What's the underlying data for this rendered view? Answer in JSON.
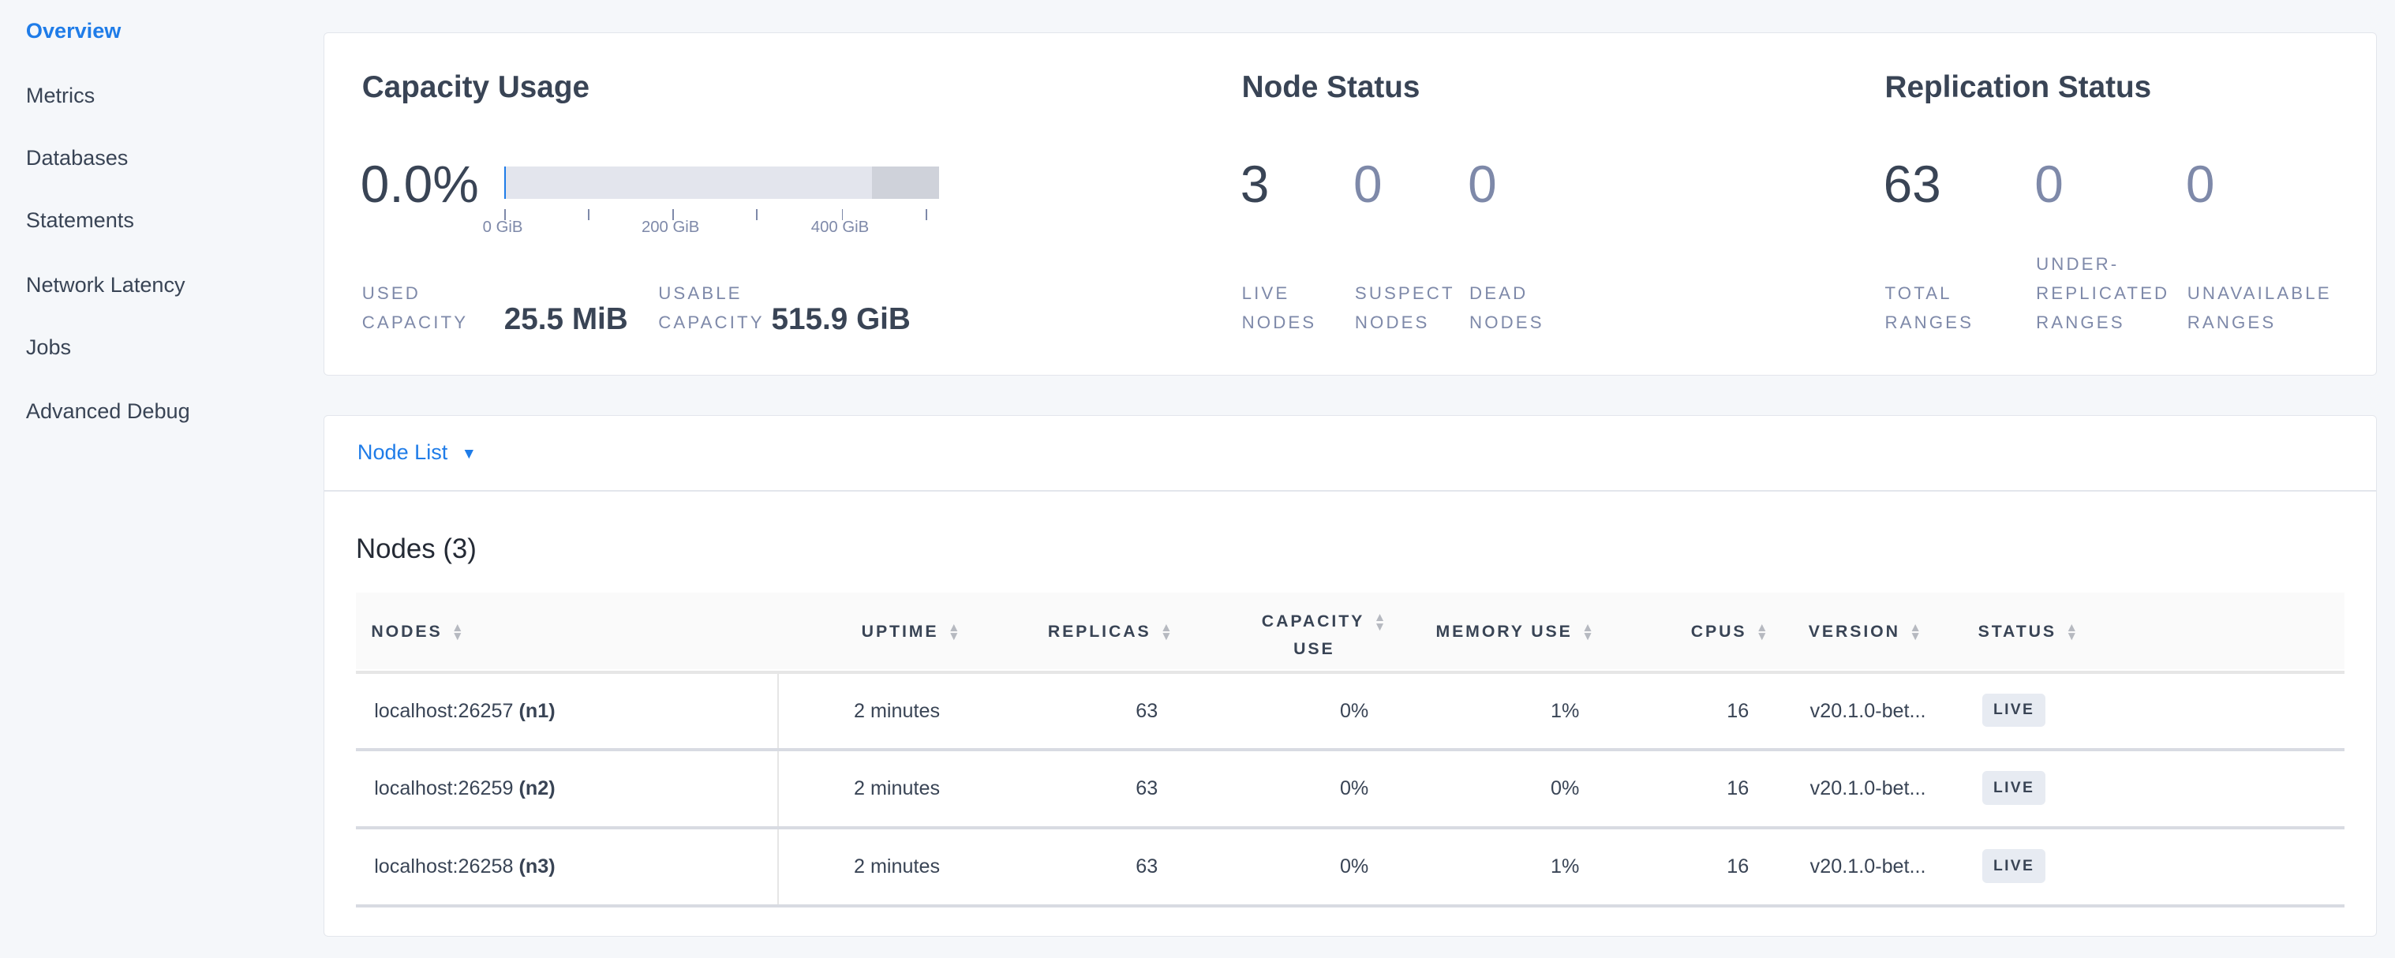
{
  "sidebar": {
    "items": [
      {
        "label": "Overview",
        "active": true
      },
      {
        "label": "Metrics"
      },
      {
        "label": "Databases"
      },
      {
        "label": "Statements"
      },
      {
        "label": "Network Latency"
      },
      {
        "label": "Jobs"
      },
      {
        "label": "Advanced Debug"
      }
    ]
  },
  "capacity": {
    "title": "Capacity Usage",
    "percent": "0.0%",
    "used_fraction": 5e-05,
    "ticks": [
      "0 GiB",
      "200 GiB",
      "400 GiB"
    ],
    "used_label_1": "USED",
    "used_label_2": "CAPACITY",
    "used_value": "25.5 MiB",
    "usable_label_1": "USABLE",
    "usable_label_2": "CAPACITY",
    "usable_value": "515.9 GiB"
  },
  "node_status": {
    "title": "Node Status",
    "live": "3",
    "suspect": "0",
    "dead": "0",
    "live_l1": "LIVE",
    "live_l2": "NODES",
    "suspect_l1": "SUSPECT",
    "suspect_l2": "NODES",
    "dead_l1": "DEAD",
    "dead_l2": "NODES"
  },
  "replication": {
    "title": "Replication Status",
    "total": "63",
    "under": "0",
    "unavailable": "0",
    "total_l1": "TOTAL",
    "total_l2": "RANGES",
    "under_l1": "UNDER-",
    "under_l2": "REPLICATED",
    "under_l3": "RANGES",
    "unavail_l1": "UNAVAILABLE",
    "unavail_l2": "RANGES"
  },
  "node_list": {
    "dropdown_label": "Node List",
    "heading": "Nodes (3)",
    "columns": {
      "nodes": "NODES",
      "uptime": "UPTIME",
      "replicas": "REPLICAS",
      "capacity_1": "CAPACITY",
      "capacity_2": "USE",
      "memory": "MEMORY USE",
      "cpus": "CPUS",
      "version": "VERSION",
      "status": "STATUS"
    },
    "rows": [
      {
        "addr": "localhost:26257",
        "id": "(n1)",
        "uptime": "2 minutes",
        "replicas": "63",
        "capacity": "0%",
        "memory": "1%",
        "cpus": "16",
        "version": "v20.1.0-bet...",
        "status": "LIVE"
      },
      {
        "addr": "localhost:26259",
        "id": "(n2)",
        "uptime": "2 minutes",
        "replicas": "63",
        "capacity": "0%",
        "memory": "0%",
        "cpus": "16",
        "version": "v20.1.0-bet...",
        "status": "LIVE"
      },
      {
        "addr": "localhost:26258",
        "id": "(n3)",
        "uptime": "2 minutes",
        "replicas": "63",
        "capacity": "0%",
        "memory": "1%",
        "cpus": "16",
        "version": "v20.1.0-bet...",
        "status": "LIVE"
      }
    ]
  },
  "colors": {
    "accent": "#1f7ce8",
    "text": "#394455",
    "muted": "#7e89a9"
  }
}
